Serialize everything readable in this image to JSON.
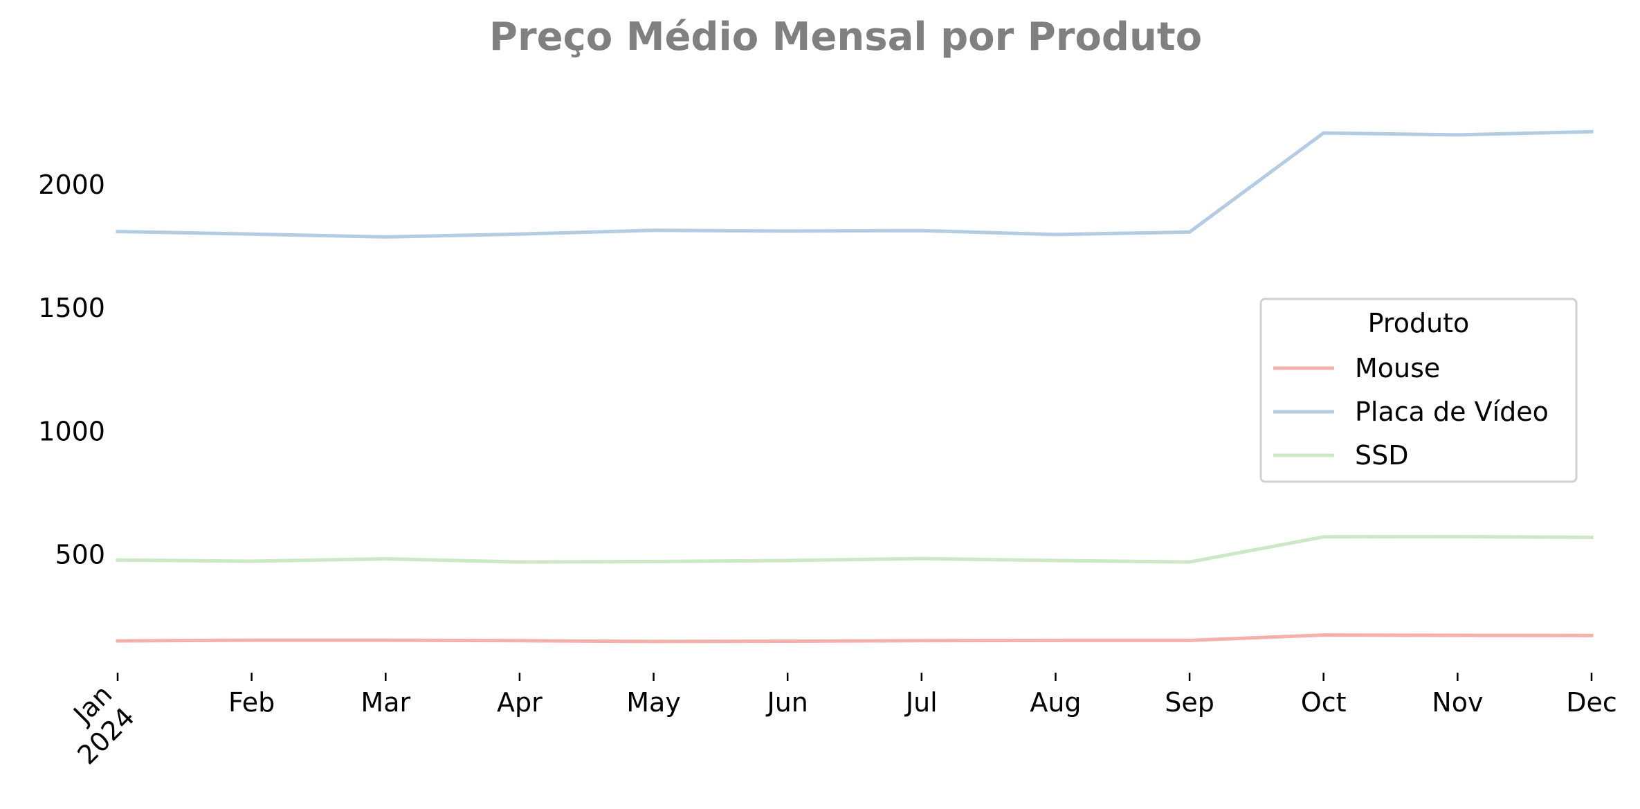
{
  "chart_data": {
    "type": "line",
    "title": "Preço Médio Mensal por Produto",
    "xlabel": "",
    "ylabel": "",
    "categories": [
      "Jan",
      "Feb",
      "Mar",
      "Apr",
      "May",
      "Jun",
      "Jul",
      "Aug",
      "Sep",
      "Oct",
      "Nov",
      "Dec"
    ],
    "first_tick_year": "2024",
    "ylim": [
      55,
      2300
    ],
    "y_ticks": [
      500,
      1000,
      1500,
      2000
    ],
    "grid": false,
    "legend": {
      "title": "Produto",
      "placement": "center-right"
    },
    "series": [
      {
        "name": "Mouse",
        "color": "#f4b1ab",
        "values": [
          150,
          153,
          153,
          151,
          148,
          149,
          151,
          152,
          152,
          174,
          173,
          172
        ]
      },
      {
        "name": "Placa de Vídeo",
        "color": "#b3cce3",
        "values": [
          1810,
          1800,
          1788,
          1800,
          1815,
          1812,
          1814,
          1798,
          1808,
          2210,
          2202,
          2215
        ]
      },
      {
        "name": "SSD",
        "color": "#cce8c7",
        "values": [
          478,
          473,
          483,
          470,
          472,
          476,
          484,
          476,
          470,
          572,
          573,
          570
        ]
      }
    ]
  }
}
